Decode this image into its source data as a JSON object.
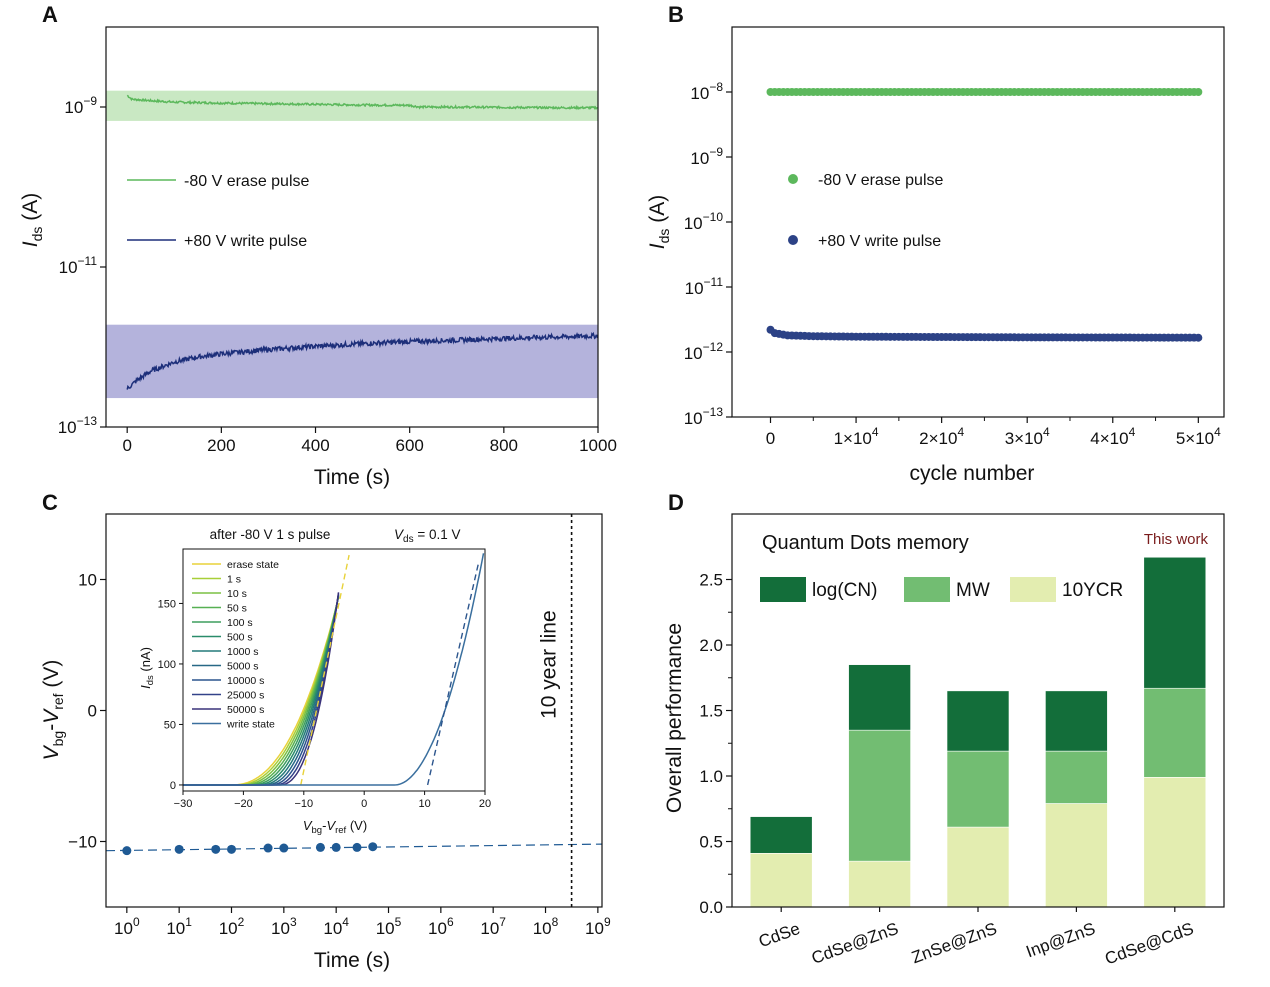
{
  "colors": {
    "erase": "#5cb85c",
    "erase_band": "#c9e8c3",
    "write": "#1d2f7a",
    "write_band": "#b4b3dc",
    "retention": "#1f5a94",
    "log_cn": "#136e3a",
    "mw": "#72bd72",
    "ycr": "#e3edb0",
    "this_work": "#7a1c1c"
  },
  "chart_data": [
    {
      "panel": "A",
      "type": "line",
      "xlabel": "Time (s)",
      "ylabel": "I_ds (A)",
      "y_scale": "log",
      "xlim": [
        -45,
        1000
      ],
      "ylim": [
        1e-13,
        1e-08
      ],
      "x_ticks": [
        "0",
        "200",
        "400",
        "600",
        "800",
        "1000"
      ],
      "y_ticks": [
        "10^-13",
        "10^-11",
        "10^-9"
      ],
      "series": [
        {
          "name": "-80 V erase pulse",
          "x": [
            0,
            10,
            50,
            100,
            200,
            300,
            400,
            500,
            600,
            620,
            700,
            800,
            900,
            1000
          ],
          "y": [
            1.4e-09,
            1.25e-09,
            1.2e-09,
            1.15e-09,
            1.12e-09,
            1.1e-09,
            1.08e-09,
            1.06e-09,
            1.05e-09,
            1e-09,
            1e-09,
            9.9e-10,
            9.8e-10,
            9.8e-10
          ]
        },
        {
          "name": "+80 V write pulse",
          "x": [
            0,
            20,
            50,
            100,
            150,
            200,
            300,
            400,
            500,
            600,
            700,
            800,
            900,
            1000
          ],
          "y": [
            3e-13,
            3.8e-13,
            5e-13,
            6.5e-13,
            7.5e-13,
            8.2e-13,
            9.3e-13,
            1.02e-12,
            1.1e-12,
            1.17e-12,
            1.22e-12,
            1.28e-12,
            1.33e-12,
            1.38e-12
          ]
        }
      ],
      "bands": [
        {
          "series": "-80 V erase pulse",
          "y_range": [
            6.7e-10,
            1.6e-09
          ]
        },
        {
          "series": "+80 V write pulse",
          "y_range": [
            2.3e-13,
            1.9e-12
          ]
        }
      ]
    },
    {
      "panel": "B",
      "type": "scatter",
      "xlabel": "cycle number",
      "ylabel": "I_ds (A)",
      "y_scale": "log",
      "xlim": [
        -4500,
        53000
      ],
      "ylim": [
        1e-13,
        1e-07
      ],
      "x_ticks": [
        "0",
        "1×10^4",
        "2×10^4",
        "3×10^4",
        "4×10^4",
        "5×10^4"
      ],
      "y_ticks": [
        "10^-13",
        "10^-12",
        "10^-11",
        "10^-10",
        "10^-9",
        "10^-8"
      ],
      "series": [
        {
          "name": "-80 V  erase pulse",
          "x": [
            0,
            50000
          ],
          "y": [
            1e-08,
            1e-08
          ]
        },
        {
          "name": "+80 V  write pulse",
          "x": [
            0,
            500,
            2000,
            5000,
            10000,
            20000,
            30000,
            40000,
            50000
          ],
          "y": [
            2.2e-12,
            1.95e-12,
            1.8e-12,
            1.75e-12,
            1.72e-12,
            1.7e-12,
            1.68e-12,
            1.67e-12,
            1.66e-12
          ]
        }
      ]
    },
    {
      "panel": "C",
      "type": "scatter",
      "xlabel": "Time (s)",
      "ylabel": "V_bg-V_ref (V)",
      "x_scale": "log",
      "xlim": [
        0.4,
        1200000000.0
      ],
      "ylim": [
        -15,
        15
      ],
      "x_ticks": [
        "10^0",
        "10^1",
        "10^2",
        "10^3",
        "10^4",
        "10^5",
        "10^6",
        "10^7",
        "10^8",
        "10^9"
      ],
      "y_ticks": [
        "−10",
        "0",
        "10"
      ],
      "points": {
        "x": [
          1,
          10,
          50,
          100,
          500,
          1000,
          5000,
          10000,
          25000,
          50000
        ],
        "y": [
          -10.7,
          -10.6,
          -10.6,
          -10.6,
          -10.5,
          -10.5,
          -10.45,
          -10.45,
          -10.45,
          -10.4
        ]
      },
      "fit": {
        "x": [
          0.4,
          1200000000.0
        ],
        "y": [
          -10.7,
          -10.2
        ]
      },
      "ten_year_line": {
        "x": 315000000.0,
        "label": "10 year line"
      },
      "inset": {
        "title": "after -80 V 1 s pulse",
        "vds_label": "V_ds = 0.1 V",
        "xlabel": "V_bg-V_ref (V)",
        "ylabel": "I_ds (nA)",
        "xlim": [
          -30,
          20
        ],
        "ylim": [
          -5,
          195
        ],
        "x_ticks": [
          "−30",
          "−20",
          "−10",
          "0",
          "10",
          "20"
        ],
        "y_ticks": [
          "0",
          "50",
          "100",
          "150"
        ],
        "legend": [
          "erase state",
          "1 s",
          "10 s",
          "50 s",
          "100 s",
          "500 s",
          "1000 s",
          "5000 s",
          "10000 s",
          "25000 s",
          "50000 s",
          "write state"
        ],
        "legend_colors": [
          "#e8d23a",
          "#a8cf38",
          "#7cc043",
          "#57b052",
          "#3d9e5e",
          "#2a8c6a",
          "#237a7a",
          "#276886",
          "#2c558d",
          "#334289",
          "#3a327a",
          "#3a6f9e"
        ]
      }
    },
    {
      "panel": "D",
      "type": "bar",
      "title": "Quantum Dots memory",
      "ylabel": "Overall performance",
      "ylim": [
        0,
        3.0
      ],
      "y_ticks": [
        "0.0",
        "0.5",
        "1.0",
        "1.5",
        "2.0",
        "2.5"
      ],
      "categories": [
        "CdSe",
        "CdSe@ZnS",
        "ZnSe@ZnS",
        "Inp@ZnS",
        "CdSe@CdS"
      ],
      "stacked": true,
      "series": [
        {
          "name": "10YCR",
          "values": [
            0.41,
            0.35,
            0.61,
            0.79,
            0.99
          ]
        },
        {
          "name": "MW",
          "values": [
            0.0,
            1.0,
            0.58,
            0.4,
            0.68
          ]
        },
        {
          "name": "log(CN)",
          "values": [
            0.28,
            0.5,
            0.46,
            0.46,
            1.0
          ]
        }
      ],
      "annotation": "This work"
    }
  ]
}
